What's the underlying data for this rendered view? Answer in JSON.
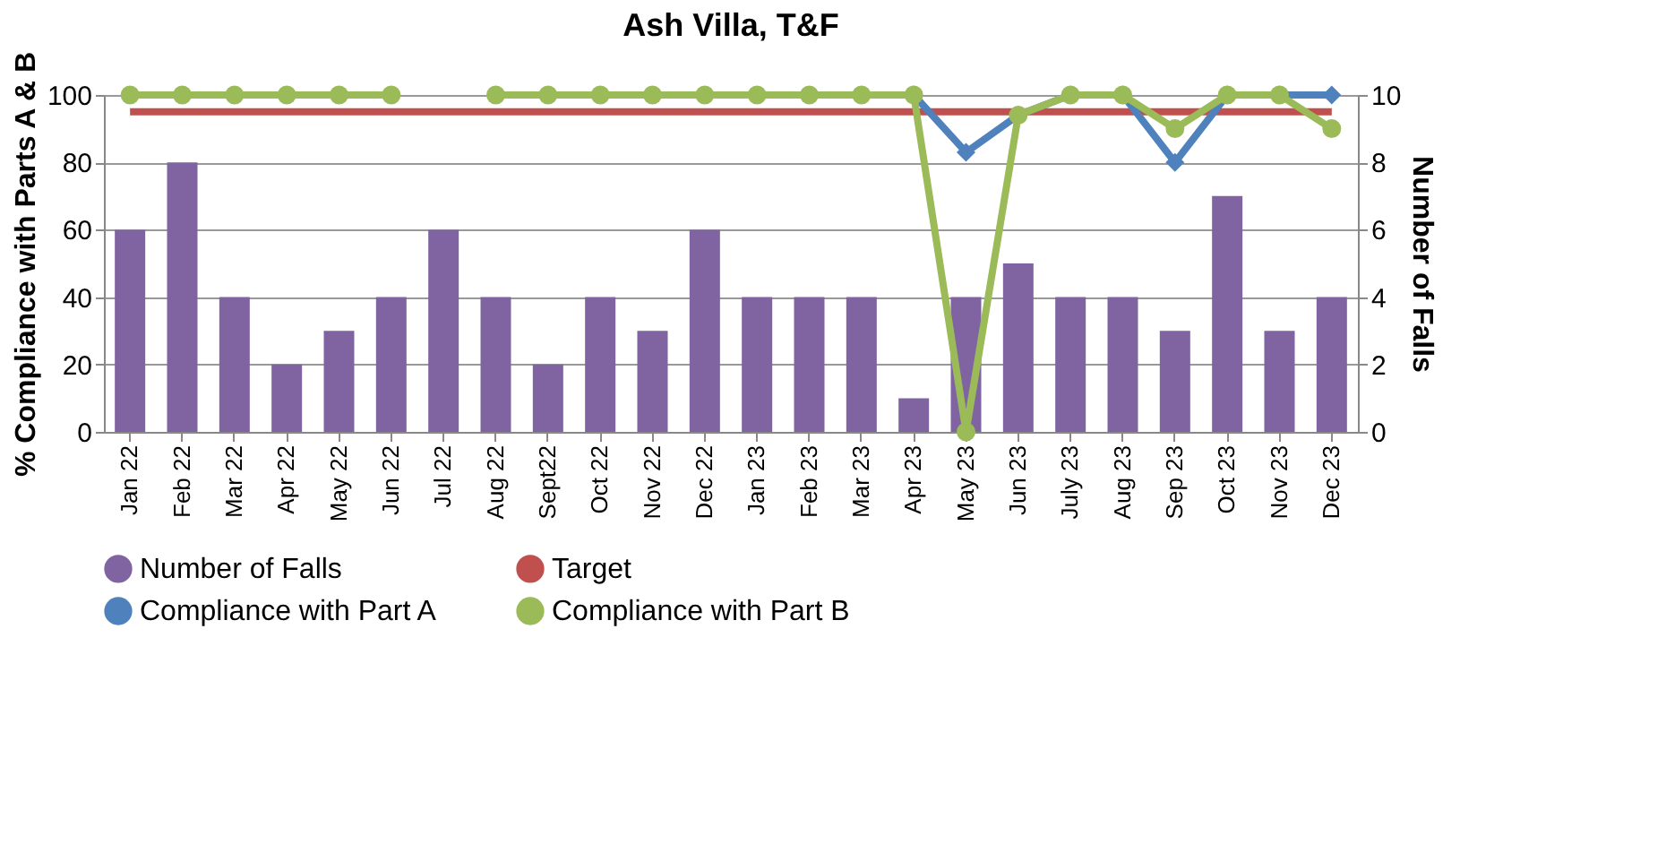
{
  "chart_data": {
    "type": "bar",
    "title": "Ash Villa, T&F",
    "ylabel": "% Compliance with Parts A & B",
    "y2label": "Number of Falls",
    "categories": [
      "Jan 22",
      "Feb 22",
      "Mar 22",
      "Apr 22",
      "May 22",
      "Jun 22",
      "Jul 22",
      "Aug 22",
      "Sept22",
      "Oct 22",
      "Nov 22",
      "Dec 22",
      "Jan 23",
      "Feb 23",
      "Mar 23",
      "Apr 23",
      "May 23",
      "Jun 23",
      "July 23",
      "Aug 23",
      "Sep 23",
      "Oct 23",
      "Nov 23",
      "Dec 23"
    ],
    "series": [
      {
        "name": "Number of Falls",
        "axis": "y2",
        "color": "#8064a2",
        "values": [
          6,
          8,
          4,
          2,
          3,
          4,
          6,
          4,
          2,
          4,
          3,
          6,
          4,
          4,
          4,
          1,
          4,
          5,
          4,
          4,
          3,
          7,
          3,
          4
        ]
      },
      {
        "name": "Target",
        "type": "line",
        "marker": "none",
        "color": "#c0504d",
        "values": [
          95,
          95,
          95,
          95,
          95,
          95,
          95,
          95,
          95,
          95,
          95,
          95,
          95,
          95,
          95,
          95,
          95,
          95,
          95,
          95,
          95,
          95,
          95,
          95
        ]
      },
      {
        "name": "Compliance with Part A",
        "type": "line",
        "marker": "diamond",
        "color": "#4f81bd",
        "values": [
          null,
          null,
          null,
          null,
          null,
          null,
          null,
          null,
          null,
          null,
          null,
          null,
          null,
          null,
          null,
          100,
          83,
          94,
          100,
          100,
          80,
          100,
          100,
          100
        ]
      },
      {
        "name": "Compliance with Part B",
        "type": "line",
        "marker": "circle",
        "color": "#9bbb59",
        "values": [
          100,
          100,
          100,
          100,
          100,
          100,
          null,
          100,
          100,
          100,
          100,
          100,
          100,
          100,
          100,
          100,
          0,
          94,
          100,
          100,
          90,
          100,
          100,
          90
        ]
      }
    ],
    "ylim": [
      0,
      100
    ],
    "yticks": [
      0,
      20,
      40,
      60,
      80,
      100
    ],
    "y2lim": [
      0,
      10
    ],
    "y2ticks": [
      0,
      2,
      4,
      6,
      8,
      10
    ],
    "grid": "y",
    "legend": "bottom"
  }
}
